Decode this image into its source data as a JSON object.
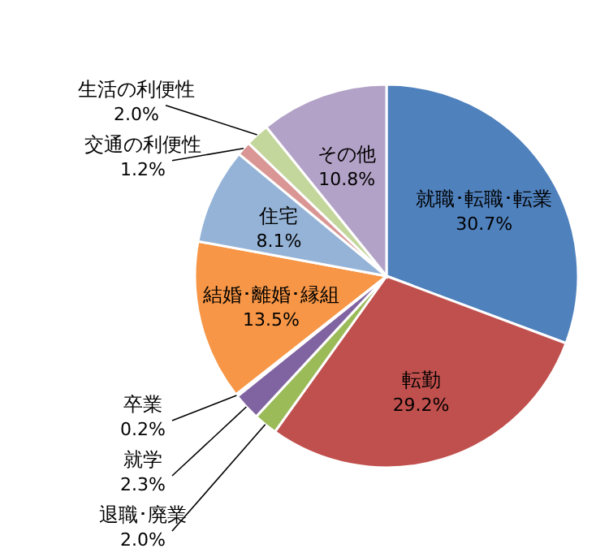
{
  "chart_data": {
    "type": "pie",
    "categories": [
      "就職･転職･転業",
      "転勤",
      "退職･廃業",
      "就学",
      "卒業",
      "結婚･離婚･縁組",
      "住宅",
      "交通の利便性",
      "生活の利便性",
      "その他"
    ],
    "values": [
      30.7,
      29.2,
      2.0,
      2.3,
      0.2,
      13.5,
      8.1,
      1.2,
      2.0,
      10.8
    ],
    "value_labels": [
      "30.7%",
      "29.2%",
      "2.0%",
      "2.3%",
      "0.2%",
      "13.5%",
      "8.1%",
      "1.2%",
      "2.0%",
      "10.8%"
    ],
    "colors": [
      "#4f81bd",
      "#c0504d",
      "#9bbb59",
      "#8064a2",
      "#ffffff",
      "#f79646",
      "#95b3d7",
      "#d99694",
      "#c3d69b",
      "#b3a2c7"
    ]
  }
}
